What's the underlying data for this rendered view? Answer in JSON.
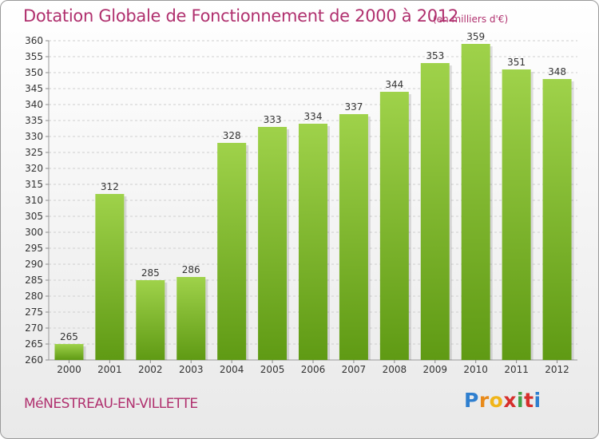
{
  "header": {
    "title": "Dotation Globale de Fonctionnement de 2000 à 2012",
    "unit": "(en milliers d'€)"
  },
  "footer": {
    "commune": "MéNESTREAU-EN-VILLETTE",
    "logo_letters": [
      "P",
      "r",
      "o",
      "x",
      "i",
      "t",
      "i"
    ],
    "logo_colors": [
      "#2f7fcf",
      "#e88a1a",
      "#f0b51a",
      "#d6302c",
      "#43a047",
      "#d6302c",
      "#2f7fcf"
    ]
  },
  "colors": {
    "bar_light": "#9fd24a",
    "bar_dark": "#5f9a14",
    "accent": "#b0306e"
  },
  "chart_data": {
    "type": "bar",
    "categories": [
      "2000",
      "2001",
      "2002",
      "2003",
      "2004",
      "2005",
      "2006",
      "2007",
      "2008",
      "2009",
      "2010",
      "2011",
      "2012"
    ],
    "values": [
      265,
      312,
      285,
      286,
      328,
      333,
      334,
      337,
      344,
      353,
      359,
      351,
      348
    ],
    "title": "Dotation Globale de Fonctionnement de 2000 à 2012",
    "subtitle": "(en milliers d'€)",
    "xlabel": "",
    "ylabel": "",
    "ylim": [
      260,
      360
    ],
    "yticks": [
      260,
      265,
      270,
      275,
      280,
      285,
      290,
      295,
      300,
      305,
      310,
      315,
      320,
      325,
      330,
      335,
      340,
      345,
      350,
      355,
      360
    ],
    "grid": true,
    "legend": "none"
  }
}
